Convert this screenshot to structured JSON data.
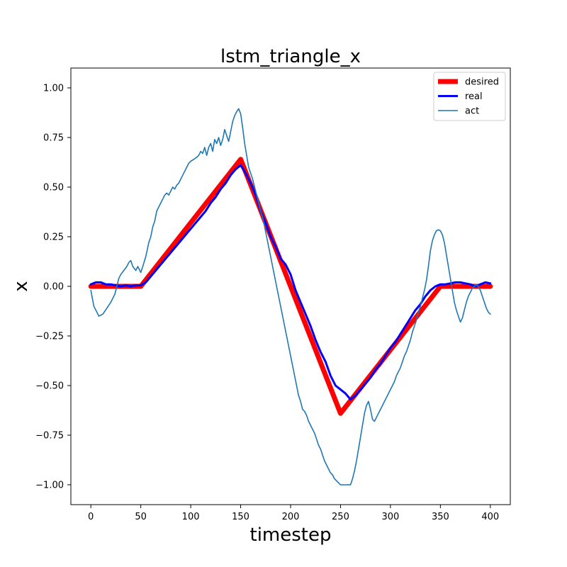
{
  "chart_data": {
    "type": "line",
    "title": "lstm_triangle_x",
    "xlabel": "timestep",
    "ylabel": "x",
    "xlim": [
      -20,
      420
    ],
    "ylim": [
      -1.1,
      1.1
    ],
    "xticks": [
      0,
      50,
      100,
      150,
      200,
      250,
      300,
      350,
      400
    ],
    "yticks": [
      -1.0,
      -0.75,
      -0.5,
      -0.25,
      0.0,
      0.25,
      0.5,
      0.75,
      1.0
    ],
    "ytick_labels": [
      "−1.00",
      "−0.75",
      "−0.50",
      "−0.25",
      "0.00",
      "0.25",
      "0.50",
      "0.75",
      "1.00"
    ],
    "grid": false,
    "legend_position": "top-right",
    "series": [
      {
        "name": "desired",
        "color": "#ff0000",
        "points": [
          [
            0,
            0.0
          ],
          [
            50,
            0.0
          ],
          [
            150,
            0.64
          ],
          [
            250,
            -0.64
          ],
          [
            350,
            0.0
          ],
          [
            400,
            0.0
          ]
        ]
      },
      {
        "name": "real",
        "color": "#0000ff",
        "points": [
          [
            0,
            0.01
          ],
          [
            5,
            0.02
          ],
          [
            10,
            0.02
          ],
          [
            15,
            0.01
          ],
          [
            20,
            0.01
          ],
          [
            25,
            0.005
          ],
          [
            30,
            0.0
          ],
          [
            35,
            0.005
          ],
          [
            40,
            0.0
          ],
          [
            45,
            0.005
          ],
          [
            50,
            0.005
          ],
          [
            55,
            0.02
          ],
          [
            60,
            0.05
          ],
          [
            65,
            0.08
          ],
          [
            70,
            0.11
          ],
          [
            75,
            0.14
          ],
          [
            80,
            0.17
          ],
          [
            85,
            0.2
          ],
          [
            90,
            0.23
          ],
          [
            95,
            0.26
          ],
          [
            100,
            0.29
          ],
          [
            105,
            0.32
          ],
          [
            110,
            0.35
          ],
          [
            115,
            0.38
          ],
          [
            120,
            0.42
          ],
          [
            125,
            0.45
          ],
          [
            130,
            0.49
          ],
          [
            135,
            0.52
          ],
          [
            140,
            0.56
          ],
          [
            145,
            0.59
          ],
          [
            150,
            0.61
          ],
          [
            155,
            0.57
          ],
          [
            160,
            0.52
          ],
          [
            165,
            0.46
          ],
          [
            170,
            0.38
          ],
          [
            175,
            0.32
          ],
          [
            180,
            0.25
          ],
          [
            185,
            0.2
          ],
          [
            190,
            0.14
          ],
          [
            195,
            0.11
          ],
          [
            200,
            0.06
          ],
          [
            205,
            -0.02
          ],
          [
            210,
            -0.08
          ],
          [
            215,
            -0.14
          ],
          [
            220,
            -0.2
          ],
          [
            225,
            -0.27
          ],
          [
            230,
            -0.33
          ],
          [
            235,
            -0.38
          ],
          [
            240,
            -0.45
          ],
          [
            245,
            -0.5
          ],
          [
            250,
            -0.52
          ],
          [
            255,
            -0.54
          ],
          [
            260,
            -0.57
          ],
          [
            265,
            -0.55
          ],
          [
            270,
            -0.52
          ],
          [
            275,
            -0.49
          ],
          [
            280,
            -0.46
          ],
          [
            285,
            -0.42
          ],
          [
            290,
            -0.39
          ],
          [
            295,
            -0.35
          ],
          [
            300,
            -0.31
          ],
          [
            305,
            -0.28
          ],
          [
            310,
            -0.24
          ],
          [
            315,
            -0.2
          ],
          [
            320,
            -0.16
          ],
          [
            325,
            -0.12
          ],
          [
            330,
            -0.09
          ],
          [
            335,
            -0.05
          ],
          [
            340,
            -0.02
          ],
          [
            345,
            0.0
          ],
          [
            350,
            0.01
          ],
          [
            355,
            0.01
          ],
          [
            360,
            0.015
          ],
          [
            365,
            0.02
          ],
          [
            370,
            0.02
          ],
          [
            375,
            0.015
          ],
          [
            380,
            0.01
          ],
          [
            385,
            0.0
          ],
          [
            390,
            0.01
          ],
          [
            395,
            0.02
          ],
          [
            400,
            0.015
          ]
        ]
      },
      {
        "name": "act",
        "color": "#1f77b4",
        "points": [
          [
            0,
            -0.02
          ],
          [
            3,
            -0.1
          ],
          [
            6,
            -0.13
          ],
          [
            8,
            -0.15
          ],
          [
            12,
            -0.14
          ],
          [
            16,
            -0.11
          ],
          [
            20,
            -0.08
          ],
          [
            24,
            -0.04
          ],
          [
            26,
            0.0
          ],
          [
            28,
            0.04
          ],
          [
            30,
            0.06
          ],
          [
            33,
            0.08
          ],
          [
            36,
            0.1
          ],
          [
            38,
            0.12
          ],
          [
            40,
            0.13
          ],
          [
            42,
            0.1
          ],
          [
            45,
            0.08
          ],
          [
            47,
            0.1
          ],
          [
            50,
            0.07
          ],
          [
            52,
            0.1
          ],
          [
            55,
            0.15
          ],
          [
            58,
            0.22
          ],
          [
            60,
            0.25
          ],
          [
            62,
            0.3
          ],
          [
            64,
            0.33
          ],
          [
            66,
            0.38
          ],
          [
            68,
            0.4
          ],
          [
            70,
            0.42
          ],
          [
            72,
            0.44
          ],
          [
            74,
            0.46
          ],
          [
            76,
            0.47
          ],
          [
            78,
            0.46
          ],
          [
            80,
            0.48
          ],
          [
            82,
            0.5
          ],
          [
            84,
            0.49
          ],
          [
            86,
            0.51
          ],
          [
            88,
            0.52
          ],
          [
            90,
            0.54
          ],
          [
            92,
            0.56
          ],
          [
            94,
            0.58
          ],
          [
            96,
            0.6
          ],
          [
            98,
            0.62
          ],
          [
            100,
            0.63
          ],
          [
            103,
            0.64
          ],
          [
            106,
            0.65
          ],
          [
            108,
            0.66
          ],
          [
            110,
            0.68
          ],
          [
            112,
            0.67
          ],
          [
            114,
            0.7
          ],
          [
            116,
            0.66
          ],
          [
            118,
            0.7
          ],
          [
            120,
            0.72
          ],
          [
            122,
            0.68
          ],
          [
            124,
            0.74
          ],
          [
            126,
            0.72
          ],
          [
            128,
            0.75
          ],
          [
            130,
            0.71
          ],
          [
            132,
            0.74
          ],
          [
            134,
            0.79
          ],
          [
            136,
            0.76
          ],
          [
            138,
            0.73
          ],
          [
            140,
            0.78
          ],
          [
            142,
            0.83
          ],
          [
            144,
            0.86
          ],
          [
            146,
            0.88
          ],
          [
            148,
            0.895
          ],
          [
            150,
            0.87
          ],
          [
            152,
            0.8
          ],
          [
            154,
            0.72
          ],
          [
            156,
            0.66
          ],
          [
            158,
            0.6
          ],
          [
            160,
            0.57
          ],
          [
            162,
            0.54
          ],
          [
            164,
            0.5
          ],
          [
            166,
            0.46
          ],
          [
            168,
            0.42
          ],
          [
            170,
            0.38
          ],
          [
            172,
            0.35
          ],
          [
            174,
            0.3
          ],
          [
            176,
            0.25
          ],
          [
            178,
            0.2
          ],
          [
            180,
            0.15
          ],
          [
            182,
            0.1
          ],
          [
            184,
            0.05
          ],
          [
            186,
            0.0
          ],
          [
            188,
            -0.05
          ],
          [
            190,
            -0.1
          ],
          [
            192,
            -0.15
          ],
          [
            194,
            -0.2
          ],
          [
            196,
            -0.25
          ],
          [
            198,
            -0.3
          ],
          [
            200,
            -0.35
          ],
          [
            202,
            -0.4
          ],
          [
            204,
            -0.45
          ],
          [
            206,
            -0.5
          ],
          [
            208,
            -0.55
          ],
          [
            210,
            -0.58
          ],
          [
            212,
            -0.62
          ],
          [
            214,
            -0.63
          ],
          [
            216,
            -0.65
          ],
          [
            218,
            -0.68
          ],
          [
            220,
            -0.7
          ],
          [
            222,
            -0.72
          ],
          [
            224,
            -0.74
          ],
          [
            226,
            -0.77
          ],
          [
            228,
            -0.8
          ],
          [
            230,
            -0.82
          ],
          [
            232,
            -0.85
          ],
          [
            234,
            -0.88
          ],
          [
            236,
            -0.9
          ],
          [
            238,
            -0.92
          ],
          [
            240,
            -0.94
          ],
          [
            242,
            -0.95
          ],
          [
            244,
            -0.97
          ],
          [
            246,
            -0.98
          ],
          [
            248,
            -0.99
          ],
          [
            250,
            -1.0
          ],
          [
            255,
            -1.0
          ],
          [
            260,
            -1.0
          ],
          [
            262,
            -0.97
          ],
          [
            264,
            -0.93
          ],
          [
            266,
            -0.88
          ],
          [
            268,
            -0.82
          ],
          [
            270,
            -0.76
          ],
          [
            272,
            -0.7
          ],
          [
            274,
            -0.64
          ],
          [
            276,
            -0.6
          ],
          [
            278,
            -0.58
          ],
          [
            280,
            -0.62
          ],
          [
            282,
            -0.67
          ],
          [
            284,
            -0.68
          ],
          [
            286,
            -0.66
          ],
          [
            288,
            -0.64
          ],
          [
            290,
            -0.62
          ],
          [
            292,
            -0.6
          ],
          [
            294,
            -0.58
          ],
          [
            296,
            -0.56
          ],
          [
            298,
            -0.54
          ],
          [
            300,
            -0.52
          ],
          [
            302,
            -0.5
          ],
          [
            304,
            -0.48
          ],
          [
            306,
            -0.45
          ],
          [
            308,
            -0.43
          ],
          [
            310,
            -0.41
          ],
          [
            312,
            -0.38
          ],
          [
            314,
            -0.35
          ],
          [
            316,
            -0.33
          ],
          [
            318,
            -0.3
          ],
          [
            320,
            -0.27
          ],
          [
            322,
            -0.23
          ],
          [
            324,
            -0.2
          ],
          [
            326,
            -0.17
          ],
          [
            328,
            -0.13
          ],
          [
            330,
            -0.1
          ],
          [
            332,
            -0.06
          ],
          [
            334,
            -0.02
          ],
          [
            336,
            0.03
          ],
          [
            338,
            0.1
          ],
          [
            340,
            0.18
          ],
          [
            342,
            0.23
          ],
          [
            344,
            0.26
          ],
          [
            346,
            0.28
          ],
          [
            348,
            0.285
          ],
          [
            350,
            0.28
          ],
          [
            352,
            0.26
          ],
          [
            354,
            0.22
          ],
          [
            356,
            0.16
          ],
          [
            358,
            0.1
          ],
          [
            360,
            0.04
          ],
          [
            362,
            -0.02
          ],
          [
            364,
            -0.08
          ],
          [
            366,
            -0.12
          ],
          [
            368,
            -0.15
          ],
          [
            370,
            -0.18
          ],
          [
            372,
            -0.16
          ],
          [
            374,
            -0.12
          ],
          [
            376,
            -0.08
          ],
          [
            378,
            -0.05
          ],
          [
            380,
            -0.03
          ],
          [
            382,
            -0.01
          ],
          [
            384,
            0.0
          ],
          [
            386,
            0.01
          ],
          [
            388,
            0.0
          ],
          [
            390,
            -0.02
          ],
          [
            392,
            -0.05
          ],
          [
            394,
            -0.08
          ],
          [
            396,
            -0.11
          ],
          [
            398,
            -0.13
          ],
          [
            400,
            -0.14
          ]
        ]
      }
    ]
  }
}
